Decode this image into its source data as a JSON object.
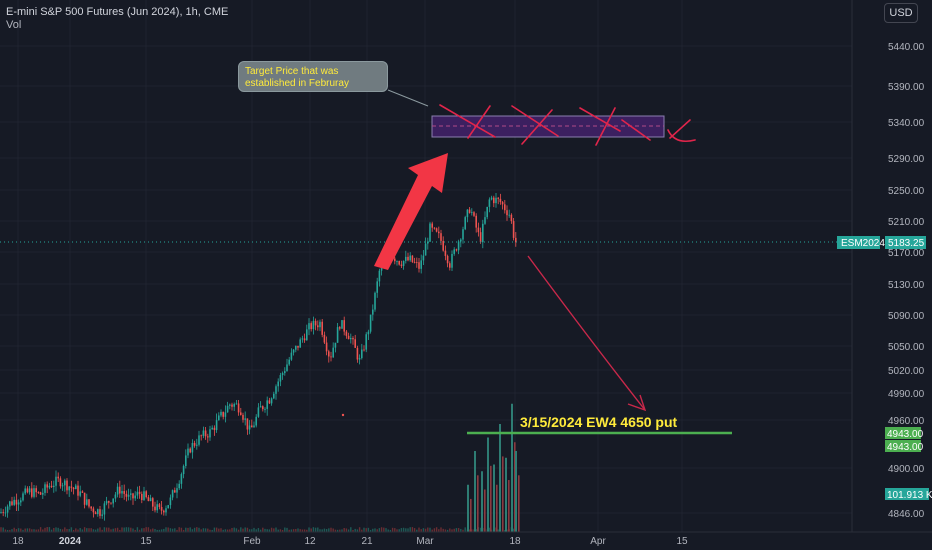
{
  "header": {
    "title": "E-mini S&P 500 Futures (Jun 2024), 1h, CME",
    "indicator": "Vol"
  },
  "toolbar": {
    "currency": "USD"
  },
  "annotations": {
    "callout_text": "Target Price that was established in Februray",
    "trade_label": "3/15/2024 EW4 4650 put"
  },
  "price_labels": {
    "symbol": "ESM2024",
    "last_price": "5183.25",
    "level_1": "4943.00",
    "level_2": "4943.00",
    "volume": "101.913 K"
  },
  "colors": {
    "background": "#161a25",
    "up_candle": "#26a69a",
    "down_candle": "#ef5350",
    "annotation_red": "#e0254b",
    "support_line": "#4caf50",
    "target_zone": "#3c2060",
    "price_tag": "#26a69a"
  },
  "chart_data": {
    "type": "candlestick",
    "title": "E-mini S&P 500 Futures (Jun 2024), 1h, CME",
    "y_axis": {
      "ticks": [
        5440,
        5390,
        5340,
        5290,
        5250,
        5210,
        5170,
        5130,
        5090,
        5050,
        5020,
        4990,
        4960,
        4900,
        4846
      ],
      "tick_labels": [
        "5440.00",
        "5390.00",
        "5340.00",
        "5290.00",
        "5250.00",
        "5210.00",
        "5170.00",
        "5130.00",
        "5090.00",
        "5050.00",
        "5020.00",
        "4990.00",
        "4960.00",
        "4900.00",
        "4846.00"
      ]
    },
    "x_axis": {
      "tick_labels": [
        "18",
        "2024",
        "15",
        "Feb",
        "12",
        "21",
        "Mar",
        "18",
        "Apr",
        "15"
      ]
    },
    "close_path": [
      [
        0,
        4846
      ],
      [
        10,
        4858
      ],
      [
        20,
        4865
      ],
      [
        30,
        4872
      ],
      [
        40,
        4868
      ],
      [
        50,
        4880
      ],
      [
        60,
        4885
      ],
      [
        70,
        4878
      ],
      [
        80,
        4870
      ],
      [
        90,
        4852
      ],
      [
        100,
        4848
      ],
      [
        110,
        4862
      ],
      [
        120,
        4875
      ],
      [
        130,
        4862
      ],
      [
        140,
        4870
      ],
      [
        150,
        4858
      ],
      [
        160,
        4848
      ],
      [
        170,
        4860
      ],
      [
        180,
        4890
      ],
      [
        190,
        4925
      ],
      [
        200,
        4938
      ],
      [
        210,
        4945
      ],
      [
        220,
        4962
      ],
      [
        230,
        4978
      ],
      [
        240,
        4975
      ],
      [
        250,
        4945
      ],
      [
        260,
        4972
      ],
      [
        270,
        4985
      ],
      [
        280,
        5010
      ],
      [
        290,
        5035
      ],
      [
        300,
        5055
      ],
      [
        310,
        5075
      ],
      [
        320,
        5080
      ],
      [
        330,
        5035
      ],
      [
        340,
        5080
      ],
      [
        350,
        5062
      ],
      [
        360,
        5030
      ],
      [
        370,
        5080
      ],
      [
        380,
        5150
      ],
      [
        390,
        5168
      ],
      [
        400,
        5158
      ],
      [
        410,
        5160
      ],
      [
        420,
        5150
      ],
      [
        430,
        5200
      ],
      [
        440,
        5188
      ],
      [
        450,
        5155
      ],
      [
        460,
        5190
      ],
      [
        470,
        5228
      ],
      [
        480,
        5185
      ],
      [
        490,
        5240
      ],
      [
        500,
        5235
      ],
      [
        510,
        5218
      ],
      [
        515,
        5183
      ]
    ],
    "volume_spikes": [
      [
        468,
        0.35
      ],
      [
        475,
        0.6
      ],
      [
        482,
        0.45
      ],
      [
        488,
        0.7
      ],
      [
        494,
        0.5
      ],
      [
        500,
        0.8
      ],
      [
        506,
        0.55
      ],
      [
        512,
        0.95
      ],
      [
        516,
        0.6
      ]
    ],
    "current_price": 5183.25,
    "support_level": 4943,
    "target_zone": [
      5318,
      5346
    ]
  }
}
